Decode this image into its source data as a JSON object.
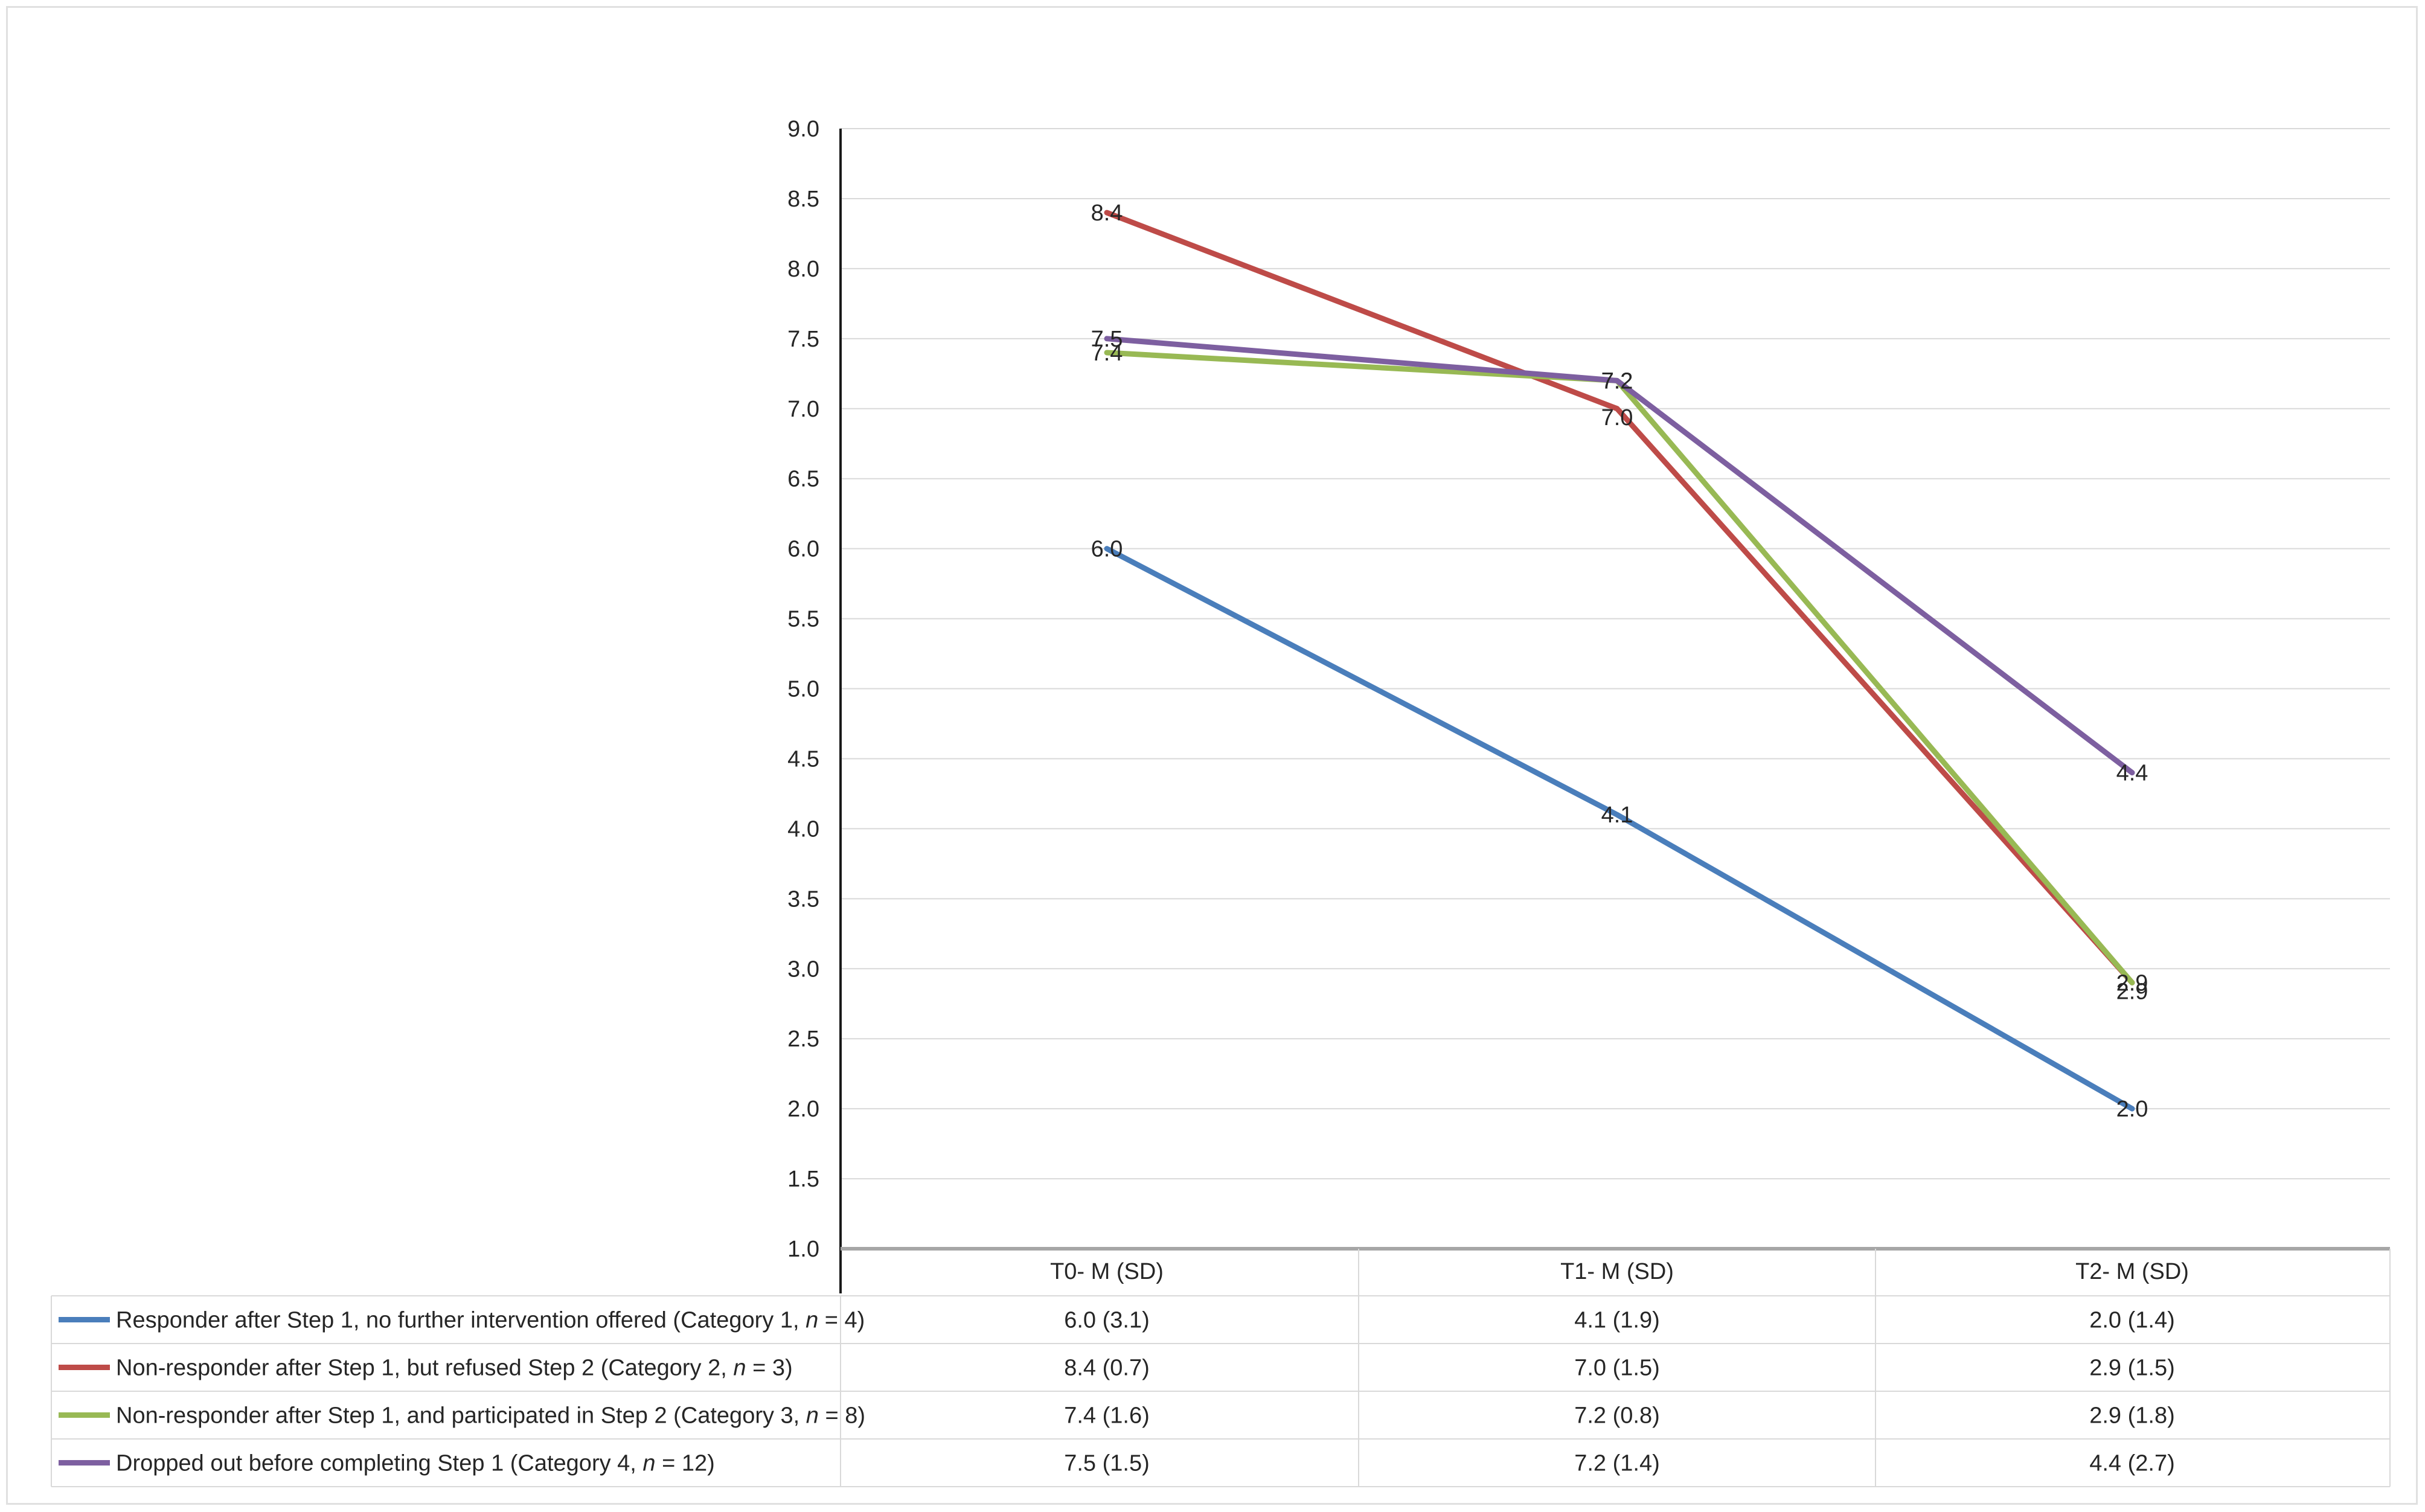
{
  "chart_data": {
    "type": "line",
    "categories": [
      "T0- M (SD)",
      "T1- M (SD)",
      "T2- M (SD)"
    ],
    "ylim": [
      1.0,
      9.0
    ],
    "yticks": [
      "1.0",
      "1.5",
      "2.0",
      "2.5",
      "3.0",
      "3.5",
      "4.0",
      "4.5",
      "5.0",
      "5.5",
      "6.0",
      "6.5",
      "7.0",
      "7.5",
      "8.0",
      "8.5",
      "9.0"
    ],
    "grid": true,
    "legend_position": "bottom-table",
    "series": [
      {
        "label_main": "Responder after Step 1, no further intervention offered (Category 1, ",
        "label_n": "n",
        "label_tail": " = 4)",
        "color": "#4a7ebb",
        "values": [
          6.0,
          4.1,
          2.0
        ],
        "data_labels": [
          "6.0",
          "4.1",
          "2.0"
        ],
        "table_cells": [
          "6.0 (3.1)",
          "4.1 (1.9)",
          "2.0 (1.4)"
        ]
      },
      {
        "label_main": "Non-responder after Step 1, but refused Step 2  (Category 2, ",
        "label_n": "n",
        "label_tail": " = 3)",
        "color": "#be4b48",
        "values": [
          8.4,
          7.0,
          2.9
        ],
        "data_labels": [
          "8.4",
          "7.0",
          "2.9"
        ],
        "table_cells": [
          "8.4 (0.7)",
          "7.0 (1.5)",
          "2.9 (1.5)"
        ]
      },
      {
        "label_main": "Non-responder after Step 1, and participated in Step 2  (Category 3, ",
        "label_n": "n",
        "label_tail": " = 8)",
        "color": "#98b954",
        "values": [
          7.4,
          7.2,
          2.9
        ],
        "data_labels": [
          "7.4",
          "7.2",
          "2.9"
        ],
        "table_cells": [
          "7.4 (1.6)",
          "7.2 (0.8)",
          "2.9 (1.8)"
        ]
      },
      {
        "label_main": "Dropped out before completing Step 1  (Category 4, ",
        "label_n": "n",
        "label_tail": " = 12)",
        "color": "#7d5fa0",
        "values": [
          7.5,
          7.2,
          4.4
        ],
        "data_labels": [
          "7.5",
          "7.2",
          "4.4"
        ],
        "table_cells": [
          "7.5 (1.5)",
          "7.2 (1.4)",
          "4.4 (2.7)"
        ]
      }
    ]
  }
}
